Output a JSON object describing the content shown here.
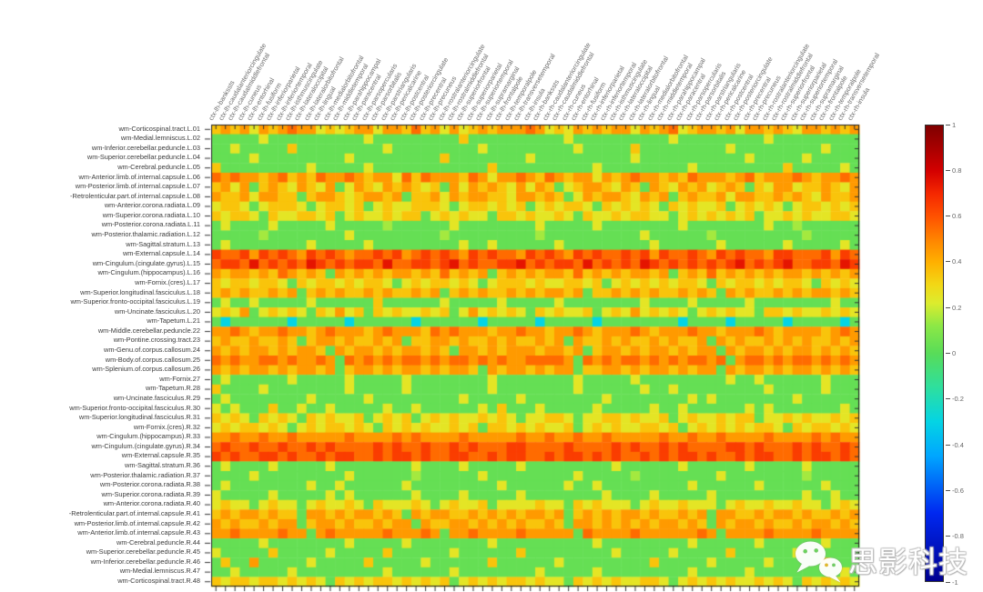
{
  "watermark": {
    "text": "思影科技",
    "icon": "wechat-logo-icon"
  },
  "chart_data": {
    "type": "heatmap",
    "title": "",
    "xlabel": "",
    "ylabel": "",
    "grid": false,
    "legend_position": "right-colorbar",
    "value_range": [
      -1,
      1
    ],
    "x_categories": [
      "ctx-lh-bankssts",
      "ctx-lh-caudalanteriorcingulate",
      "ctx-lh-caudalmiddlefrontal",
      "ctx-lh-cuneus",
      "ctx-lh-entorhinal",
      "ctx-lh-fusiform",
      "ctx-lh-inferiorparietal",
      "ctx-lh-inferiortemporal",
      "ctx-lh-isthmuscingulate",
      "ctx-lh-lateraloccipital",
      "ctx-lh-lateralorbitofrontal",
      "ctx-lh-lingual",
      "ctx-lh-medialorbitofrontal",
      "ctx-lh-middletemporal",
      "ctx-lh-parahippocampal",
      "ctx-lh-paracentral",
      "ctx-lh-parsopercularis",
      "ctx-lh-parsorbitalis",
      "ctx-lh-parstriangularis",
      "ctx-lh-pericalcarine",
      "ctx-lh-postcentral",
      "ctx-lh-posteriorcingulate",
      "ctx-lh-precentral",
      "ctx-lh-precuneus",
      "ctx-lh-rostralanteriorcingulate",
      "ctx-lh-rostralmiddlefrontal",
      "ctx-lh-superiorfrontal",
      "ctx-lh-superiorparietal",
      "ctx-lh-superiortemporal",
      "ctx-lh-supramarginal",
      "ctx-lh-frontalpole",
      "ctx-lh-temporalpole",
      "ctx-lh-transversetemporal",
      "ctx-lh-insula",
      "ctx-rh-bankssts",
      "ctx-rh-caudalanteriorcingulate",
      "ctx-rh-caudalmiddlefrontal",
      "ctx-rh-cuneus",
      "ctx-rh-entorhinal",
      "ctx-rh-fusiform",
      "ctx-rh-inferiorparietal",
      "ctx-rh-inferiortemporal",
      "ctx-rh-isthmuscingulate",
      "ctx-rh-lateraloccipital",
      "ctx-rh-lateralorbitofrontal",
      "ctx-rh-lingual",
      "ctx-rh-medialorbitofrontal",
      "ctx-rh-middletemporal",
      "ctx-rh-parahippocampal",
      "ctx-rh-paracentral",
      "ctx-rh-parsopercularis",
      "ctx-rh-parsorbitalis",
      "ctx-rh-parstriangularis",
      "ctx-rh-pericalcarine",
      "ctx-rh-postcentral",
      "ctx-rh-posteriorcingulate",
      "ctx-rh-precentral",
      "ctx-rh-precuneus",
      "ctx-rh-rostralanteriorcingulate",
      "ctx-rh-rostralmiddlefrontal",
      "ctx-rh-superiorfrontal",
      "ctx-rh-superiorparietal",
      "ctx-rh-superiortemporal",
      "ctx-rh-supramarginal",
      "ctx-rh-frontalpole",
      "ctx-rh-temporalpole",
      "ctx-rh-transversetemporal",
      "ctx-rh-insula"
    ],
    "y_categories": [
      "wm-Corticospinal.tract.L.01",
      "wm-Medial.lemniscus.L.02",
      "wm-Inferior.cerebellar.peduncle.L.03",
      "wm-Superior.cerebellar.peduncle.L.04",
      "wm-Cerebral.peduncle.L.05",
      "wm-Anterior.limb.of.internal.capsule.L.06",
      "wm-Posterior.limb.of.internal.capsule.L.07",
      "-Retrolenticular.part.of.internal.capsule.L.08",
      "wm-Anterior.corona.radiata.L.09",
      "wm-Superior.corona.radiata.L.10",
      "wm-Posterior.corona.radiata.L.11",
      "wm-Posterior.thalamic.radiation.L.12",
      "wm-Sagittal.stratum.L.13",
      "wm-External.capsule.L.14",
      "wm-Cingulum.(cingulate.gyrus).L.15",
      "wm-Cingulum.(hippocampus).L.16",
      "wm-Fornix.(cres).L.17",
      "wm-Superior.longitudinal.fasciculus.L.18",
      "wm-Superior.fronto-occipital.fasciculus.L.19",
      "wm-Uncinate.fasciculus.L.20",
      "wm-Tapetum.L.21",
      "wm-Middle.cerebellar.peduncle.22",
      "wm-Pontine.crossing.tract.23",
      "wm-Genu.of.corpus.callosum.24",
      "wm-Body.of.corpus.callosum.25",
      "wm-Splenium.of.corpus.callosum.26",
      "wm-Fornix.27",
      "wm-Tapetum.R.28",
      "wm-Uncinate.fasciculus.R.29",
      "wm-Superior.fronto-occipital.fasciculus.R.30",
      "wm-Superior.longitudinal.fasciculus.R.31",
      "wm-Fornix.(cres).R.32",
      "wm-Cingulum.(hippocampus).R.33",
      "wm-Cingulum.(cingulate.gyrus).R.34",
      "wm-External.capsule.R.35",
      "wm-Sagittal.stratum.R.36",
      "wm-Posterior.thalamic.radiation.R.37",
      "wm-Posterior.corona.radiata.R.38",
      "wm-Superior.corona.radiata.R.39",
      "wm-Anterior.corona.radiata.R.40",
      "-Retrolenticular.part.of.internal.capsule.R.41",
      "wm-Posterior.limb.of.internal.capsule.R.42",
      "wm-Anterior.limb.of.internal.capsule.R.43",
      "wm-Cerebral.peduncle.R.44",
      "wm-Superior.cerebellar.peduncle.R.45",
      "wm-Inferior.cerebellar.peduncle.R.46",
      "wm-Medial.lemniscus.R.47",
      "wm-Corticospinal.tract.R.48"
    ],
    "value_encoding": {
      ".": 0.03,
      "1": 0.15,
      "2": 0.25,
      "3": 0.35,
      "4": 0.45,
      "5": 0.55,
      "6": 0.65,
      "7": 0.75,
      "8": 0.85,
      "c": -0.3
    },
    "rows": [
      "3434 2434 5442 3234 4244 3534 2423 4344 4542 3243 4344 2434 5234 4342 4434 3244 3434",
      ".... .2.. .... .... 2... .... ..3. .... .... .2.. .... .... 2... .... ..2. .... ....",
      "..2. .... 3... .... ..2. .... .... 2... .... ..2. .... 3... .... ..2. .... .... 2...",
      ".... 2... .... ..2. .... .... 3... .... .2.. .... .... 2... .... .... 2... ..2. ....",
      "3... .... ..2. .... 2... .... .... .3.. .... .... 2... .... ..2. .... .... 3... ..2.",
      "5454 4345 3435 4454 3442 5354 4435 4244 5435 4344 2434 5443 4354 4434 5344 4543 4454",
      "3424 .343 2432 4.24 3243 4323 .424 3432 4243 .234 4324 3.43 2434 2343 .324 4233 4324",
      "4334 2443 3.34 4323 4434 .334 2434 4332 4434 3.24 3443 2434 .343 3424 4334 3432 4334",
      "2332 .233 32.2 3323 .232 2333 2.23 3232 3.23 2332 .323 232. 3232 23.2 3232 .233 2323",
      "3233 2.32 2332 3.23 2232 33.2 3232 2.33 2322 32.3 2232 3322 .232 3232 3.22 3232 2332",
      ".2.. ..2. .... 2... ..1. .... .2.. .... ..2. .... 2... .... .2.. .... ..2. .1.. ....",
      ".... .1.. .... ..2. .... .... 1... .... ..1. .... .... .2.. .... 1... .... ..1. ....",
      ".2.. .... ..2. .... 2... .... ..2. .2.. .... 2... .... ..2. .... .2.. .... 2... ..2.",
      "6556 4656 5465 6545 5656 4565 6546 5655 4656 5465 6556 5646 5565 4656 5546 6555 6465",
      "5665 7565 6576 5656 6575 5665 6756 5566 7565 6657 5656 5765 6565 6567 5656 7556 6576",
      "4344 3435 4343 .434 3434 4343 5343 4.34 3434 4353 4343 4434 .343 5343 4343 4434 3434",
      "3233 2332 .323 3232 332. 2323 3232 .233 3232 2332 3.23 2323 2332 .323 3232 332. 3232",
      "3434 3343 4.34 3433 4343 3434 .343 4334 3434 434. 3343 4343 3434 3.43 4334 3434 4343",
      ".2.. 2... ..2. .... .3.. .... 2... ..2. .... 2... .... .2.. ..2. .... 2... .... .2..",
      "2324 .232 32.3 2423 .323 2232 3.24 2323 2.32 3223 .232 4232 32.2 3232 2.33 2322 3232",
      ".c.. .... c... ..c. .... .c.. .... c... ..c. .... c... .... .c.. ..c. .... c... ..c.",
      "4454 3445 4434 5444 3454 4435 4544 4344 5443 4454 3444 5434 4454 4344 4543 4444 3454",
      "3433 4334 3.34 4343 3434 .334 4343 3434 3343 4.43 3434 3343 4334 .434 3343 4343 3434",
      "4343 4434 3443 .434 4343 4434 3.44 3434 4434 434. 3443 4344 3434 4.43 4434 3443 4343",
      "5454 4554 5445 4.54 5454 5545 4554 5454 4555 54.5 4545 5454 5455 45.4 5545 4554 5454",
      "4343 4434 3443 4.34 4343 4434 3443 .434 4343 44.3 3443 4344 3434 4.43 4434 3443 4343",
      ".2.. .... 2... ..2. .... 2... .... .2.. .... ..2. .... 2... .... ..2. .2.. .... 2...",
      "3... .2.. .... ..2. .... 2... .... .2.. .... ..2. .... .2.. 2... .... ..2. .... 2...",
      ".2.. .... ..2. .... 2... .... ..2. .... 2... .... .2.. .... ..2. 2... .... .2.. ....",
      "2.2. ..3. .2.. 2... ..2. .2.. .... 2.3. ..2. .... 2... ..2. .2.. .... 2.2. .... ..2.",
      "3232 .323 2.32 3223 .232 3.23 2322 3232 .223 32.2 2332 3223 .232 2323 3.22 3232 2323",
      "2323 3232 .232 3323 2.32 3232 2323 .332 3232 23.2 3232 2332 3.23 2323 2332 .323 3232",
      "4454 4544 5444 4454 4445 4544 4454 4444 5445 4454 4544 4445 4454 4544 4454 4445 4544",
      "5655 6556 5565 6555 5656 5565 5656 5556 6555 5655 5565 6556 5655 5566 5655 5656 5565",
      "6565 5665 6556 5665 5656 6565 5665 5656 6556 5665 6565 5656 5665 6556 5665 5656 6565",
      ".2.. ..2. .... 2... .... .2.. ..2. .... 2... .... ..2. .... .2.. .... 2... ..2. ....",
      ".... 2... .... ..2. .... .1.. .... 2... .... ..2. .... 1... .... .2.. .... ..1. ....",
      ".2.. .... ..2. .2.. .... 2... .... ..2. .... .2.. 2... .... ..2. .... .2.. .... 2...",
      "2... ..2. .... 2.2. .... .2.. ..2. .... 2... .... .2.. ..2. .... 2... .... ..2. .2..",
      "2322 .232 2.23 2232 .322 232. 2322 3.22 2232 2.32 3222 .232 2322 2.23 2232 2322 .232",
      "3434 4343 3.44 3434 4343 .434 4334 3434 3443 4.34 3434 4343 3434 .443 3434 4343 3434",
      "4343 3434 4.34 4343 3434 4.43 3443 4343 4334 3.44 3434 3434 4343 .434 4343 3434 4343",
      "4454 4445 44.4 5444 4454 4454 .445 4444 5444 44.5 4444 5444 4445 4.44 4454 4445 4444",
      ".... .2.. .... ..2. .... 2... .... .2.. .... .... 2... .... ..2. .... .2.. .... 2...",
      "2... ..3. .... 2... ..3. .... .2.. .... 3... .... ..2. .... 2... ..3. .... .2.. ....",
      ".3.. 4... ..2. .... 3... ..2. .... .3.. .... 2... .... ..3. .... 2... ..2. .... 3...",
      "..2. .... 2... .... ..2. .... .2.. .... ..2. .... 2... .... ..2. .... 2... .... ..2.",
      "3233 2332 3232 .323 2332 3232 3.23 2323 3232 2.32 3232 2332 .232 3232 2323 2.32 3232"
    ],
    "colorbar": {
      "ticks": [
        "1",
        "0.8",
        "0.6",
        "0.4",
        "0.2",
        "0",
        "-0.2",
        "-0.4",
        "-0.6",
        "-0.8",
        "-1"
      ],
      "anchors": [
        [
          1,
          "#7f0000"
        ],
        [
          0.9,
          "#a80000"
        ],
        [
          0.8,
          "#d40000"
        ],
        [
          0.7,
          "#f52800"
        ],
        [
          0.6,
          "#ff5200"
        ],
        [
          0.5,
          "#ff8400"
        ],
        [
          0.4,
          "#ffb000"
        ],
        [
          0.3,
          "#f2d816"
        ],
        [
          0.22,
          "#dcec2e"
        ],
        [
          0.12,
          "#8ce846"
        ],
        [
          0,
          "#58dc58"
        ],
        [
          -0.15,
          "#2edf9e"
        ],
        [
          -0.3,
          "#04d4e4"
        ],
        [
          -0.45,
          "#00a6ff"
        ],
        [
          -0.7,
          "#0028f0"
        ],
        [
          -1,
          "#000090"
        ]
      ]
    }
  }
}
